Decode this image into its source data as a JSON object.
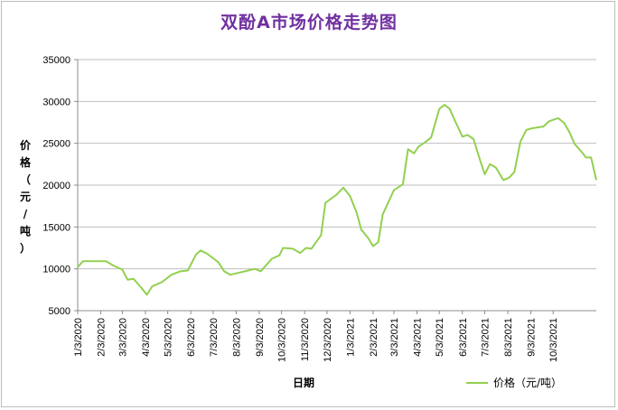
{
  "chart_data": {
    "type": "line",
    "title": "双酚A市场价格走势图",
    "xlabel": "日期",
    "ylabel": "价格（元/吨）",
    "ylim": [
      5000,
      35000
    ],
    "yticks": [
      5000,
      10000,
      15000,
      20000,
      25000,
      30000,
      35000
    ],
    "grid": "horizontal",
    "legend_position": "bottom-right",
    "color": "#92d050",
    "xtick_labels": [
      "1/3/2020",
      "2/3/2020",
      "3/3/2020",
      "4/3/2020",
      "5/3/2020",
      "6/3/2020",
      "7/3/2020",
      "8/3/2020",
      "9/3/2020",
      "10/3/2020",
      "11/3/2020",
      "12/3/2020",
      "1/3/2021",
      "2/3/2021",
      "3/3/2021",
      "4/3/2021",
      "5/3/2021",
      "6/3/2021",
      "7/3/2021",
      "8/3/2021",
      "9/3/2021",
      "10/3/2021"
    ],
    "series": [
      {
        "name": "价格（元/吨）",
        "points": [
          [
            "2020-01-03",
            10200
          ],
          [
            "2020-01-10",
            10900
          ],
          [
            "2020-01-20",
            10900
          ],
          [
            "2020-02-01",
            10900
          ],
          [
            "2020-02-10",
            10900
          ],
          [
            "2020-02-20",
            10400
          ],
          [
            "2020-03-03",
            9900
          ],
          [
            "2020-03-10",
            8700
          ],
          [
            "2020-03-18",
            8800
          ],
          [
            "2020-03-28",
            7800
          ],
          [
            "2020-04-05",
            6900
          ],
          [
            "2020-04-12",
            7900
          ],
          [
            "2020-04-25",
            8400
          ],
          [
            "2020-05-08",
            9300
          ],
          [
            "2020-05-20",
            9700
          ],
          [
            "2020-05-30",
            9800
          ],
          [
            "2020-06-10",
            11700
          ],
          [
            "2020-06-16",
            12200
          ],
          [
            "2020-06-25",
            11800
          ],
          [
            "2020-07-10",
            10800
          ],
          [
            "2020-07-18",
            9700
          ],
          [
            "2020-07-26",
            9300
          ],
          [
            "2020-08-05",
            9500
          ],
          [
            "2020-08-15",
            9700
          ],
          [
            "2020-08-28",
            10000
          ],
          [
            "2020-09-05",
            9700
          ],
          [
            "2020-09-20",
            11200
          ],
          [
            "2020-09-30",
            11600
          ],
          [
            "2020-10-05",
            12500
          ],
          [
            "2020-10-18",
            12400
          ],
          [
            "2020-10-28",
            11900
          ],
          [
            "2020-11-05",
            12500
          ],
          [
            "2020-11-12",
            12400
          ],
          [
            "2020-11-25",
            14000
          ],
          [
            "2020-12-01",
            17900
          ],
          [
            "2020-12-15",
            18800
          ],
          [
            "2020-12-25",
            19700
          ],
          [
            "2021-01-03",
            18700
          ],
          [
            "2021-01-12",
            16700
          ],
          [
            "2021-01-18",
            14700
          ],
          [
            "2021-01-28",
            13600
          ],
          [
            "2021-02-03",
            12700
          ],
          [
            "2021-02-10",
            13200
          ],
          [
            "2021-02-16",
            16500
          ],
          [
            "2021-03-03",
            19400
          ],
          [
            "2021-03-15",
            20100
          ],
          [
            "2021-03-22",
            24300
          ],
          [
            "2021-03-30",
            23800
          ],
          [
            "2021-04-05",
            24600
          ],
          [
            "2021-04-15",
            25200
          ],
          [
            "2021-04-22",
            25700
          ],
          [
            "2021-05-03",
            29100
          ],
          [
            "2021-05-10",
            29600
          ],
          [
            "2021-05-17",
            29100
          ],
          [
            "2021-05-25",
            27500
          ],
          [
            "2021-06-03",
            25800
          ],
          [
            "2021-06-10",
            26000
          ],
          [
            "2021-06-18",
            25500
          ],
          [
            "2021-06-26",
            23200
          ],
          [
            "2021-07-03",
            21300
          ],
          [
            "2021-07-10",
            22500
          ],
          [
            "2021-07-18",
            22100
          ],
          [
            "2021-07-28",
            20600
          ],
          [
            "2021-08-05",
            20900
          ],
          [
            "2021-08-12",
            21600
          ],
          [
            "2021-08-20",
            25200
          ],
          [
            "2021-08-28",
            26600
          ],
          [
            "2021-09-05",
            26800
          ],
          [
            "2021-09-12",
            26900
          ],
          [
            "2021-09-20",
            27000
          ],
          [
            "2021-09-27",
            27600
          ],
          [
            "2021-10-03",
            27800
          ],
          [
            "2021-10-10",
            28000
          ],
          [
            "2021-10-18",
            27400
          ],
          [
            "2021-10-25",
            26300
          ],
          [
            "2021-11-01",
            24900
          ],
          [
            "2021-11-10",
            24000
          ],
          [
            "2021-11-16",
            23300
          ],
          [
            "2021-11-23",
            23300
          ],
          [
            "2021-11-30",
            20600
          ]
        ]
      }
    ]
  }
}
